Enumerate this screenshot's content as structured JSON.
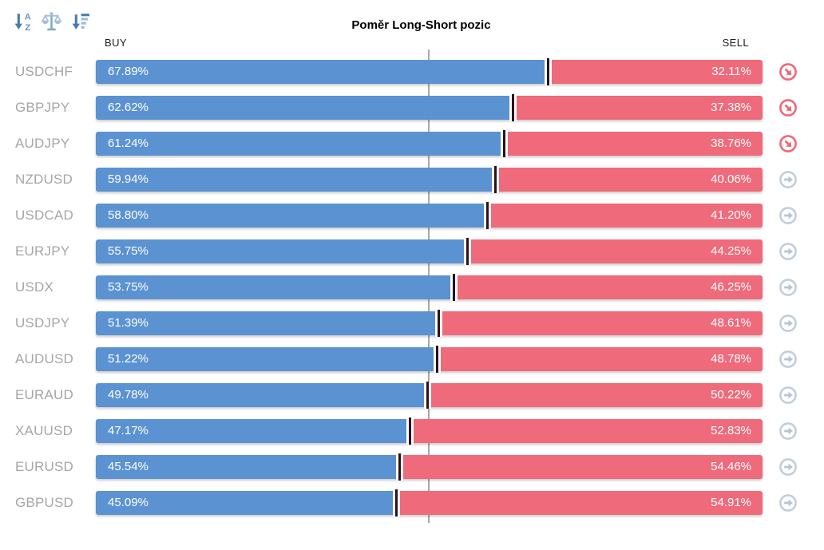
{
  "title": "Poměr Long-Short pozic",
  "headers": {
    "buy": "BUY",
    "sell": "SELL"
  },
  "toolbar": {
    "icons": [
      "sort-alphabetical",
      "balance-scale",
      "sort-by-value"
    ]
  },
  "chart_data": {
    "type": "bar",
    "orientation": "horizontal",
    "stacked": true,
    "title": "Poměr Long-Short pozic",
    "categories": [
      "USDCHF",
      "GBPJPY",
      "AUDJPY",
      "NZDUSD",
      "USDCAD",
      "EURJPY",
      "USDX",
      "USDJPY",
      "AUDUSD",
      "EURAUD",
      "XAUUSD",
      "EURUSD",
      "GBPUSD"
    ],
    "series": [
      {
        "name": "BUY",
        "color": "#5b92d1",
        "values": [
          67.89,
          62.62,
          61.24,
          59.94,
          58.8,
          55.75,
          53.75,
          51.39,
          51.22,
          49.78,
          47.17,
          45.54,
          45.09
        ]
      },
      {
        "name": "SELL",
        "color": "#ef6a7b",
        "values": [
          32.11,
          37.38,
          38.76,
          40.06,
          41.2,
          44.25,
          46.25,
          48.61,
          48.78,
          50.22,
          52.83,
          54.46,
          54.91
        ]
      }
    ],
    "xlim": [
      0,
      100
    ],
    "center_line_pct": 50,
    "legend_position": "top: BUY left, SELL right",
    "grid": false
  },
  "rows": [
    {
      "pair": "USDCHF",
      "buy": 67.89,
      "sell": 32.11,
      "buy_label": "67.89%",
      "sell_label": "32.11%",
      "signal": "down"
    },
    {
      "pair": "GBPJPY",
      "buy": 62.62,
      "sell": 37.38,
      "buy_label": "62.62%",
      "sell_label": "37.38%",
      "signal": "down"
    },
    {
      "pair": "AUDJPY",
      "buy": 61.24,
      "sell": 38.76,
      "buy_label": "61.24%",
      "sell_label": "38.76%",
      "signal": "down"
    },
    {
      "pair": "NZDUSD",
      "buy": 59.94,
      "sell": 40.06,
      "buy_label": "59.94%",
      "sell_label": "40.06%",
      "signal": "right"
    },
    {
      "pair": "USDCAD",
      "buy": 58.8,
      "sell": 41.2,
      "buy_label": "58.80%",
      "sell_label": "41.20%",
      "signal": "right"
    },
    {
      "pair": "EURJPY",
      "buy": 55.75,
      "sell": 44.25,
      "buy_label": "55.75%",
      "sell_label": "44.25%",
      "signal": "right"
    },
    {
      "pair": "USDX",
      "buy": 53.75,
      "sell": 46.25,
      "buy_label": "53.75%",
      "sell_label": "46.25%",
      "signal": "right"
    },
    {
      "pair": "USDJPY",
      "buy": 51.39,
      "sell": 48.61,
      "buy_label": "51.39%",
      "sell_label": "48.61%",
      "signal": "right"
    },
    {
      "pair": "AUDUSD",
      "buy": 51.22,
      "sell": 48.78,
      "buy_label": "51.22%",
      "sell_label": "48.78%",
      "signal": "right"
    },
    {
      "pair": "EURAUD",
      "buy": 49.78,
      "sell": 50.22,
      "buy_label": "49.78%",
      "sell_label": "50.22%",
      "signal": "right"
    },
    {
      "pair": "XAUUSD",
      "buy": 47.17,
      "sell": 52.83,
      "buy_label": "47.17%",
      "sell_label": "52.83%",
      "signal": "right"
    },
    {
      "pair": "EURUSD",
      "buy": 45.54,
      "sell": 54.46,
      "buy_label": "45.54%",
      "sell_label": "54.46%",
      "signal": "right"
    },
    {
      "pair": "GBPUSD",
      "buy": 45.09,
      "sell": 54.91,
      "buy_label": "45.09%",
      "sell_label": "54.91%",
      "signal": "right"
    }
  ],
  "colors": {
    "buy_bar": "#5b92d1",
    "sell_bar": "#ef6a7b",
    "row_label": "#a6a6a6",
    "center_line": "#a9a9a9",
    "divider_tick": "#2e1118",
    "signal_red": "#f06878",
    "signal_gray": "#c2cedb",
    "toolbar_icon_dark": "#4a7bb0",
    "toolbar_icon_light": "#a3c0da",
    "background": "#ffffff"
  }
}
